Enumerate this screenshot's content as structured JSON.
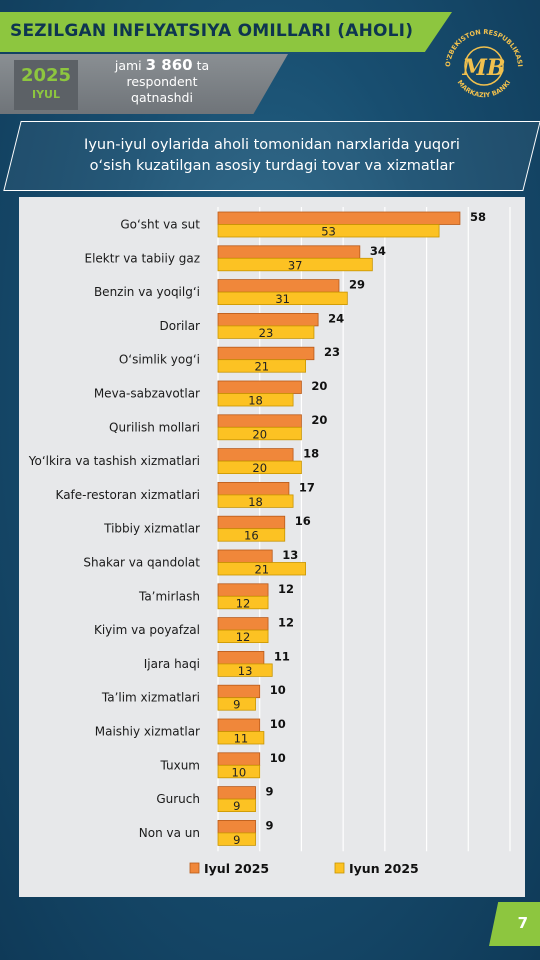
{
  "header": {
    "title": "SEZILGAN INFLYATSIYA OMILLARI (AHOLI)",
    "year": "2025",
    "month": "IYUL",
    "respondents_prefix": "jami",
    "respondents_count": "3 860",
    "respondents_suffix": "ta",
    "respondents_line2": "respondent",
    "respondents_line3": "qatnashdi"
  },
  "logo": {
    "text_top": "O'ZBEKISTON RESPUBLIKASI",
    "text_bottom": "MARKAZIY BANKI",
    "mark": "MB"
  },
  "subtitle": {
    "line1": "Iyun-iyul oylarida aholi tomonidan narxlarida yuqori",
    "line2": "o‘sish kuzatilgan asosiy turdagi tovar va xizmatlar"
  },
  "chart_data": {
    "type": "bar",
    "orientation": "horizontal",
    "categories": [
      "Go‘sht va sut",
      "Elektr va tabiiy gaz",
      "Benzin va yoqilg‘i",
      "Dorilar",
      "O‘simlik yog‘i",
      "Meva-sabzavotlar",
      "Qurilish mollari",
      "Yo‘lkira va tashish xizmatlari",
      "Kafe-restoran xizmatlari",
      "Tibbiy xizmatlar",
      "Shakar va qandolat",
      "Ta’mirlash",
      "Kiyim va poyafzal",
      "Ijara haqi",
      "Ta’lim xizmatlari",
      "Maishiy xizmatlar",
      "Tuxum",
      "Guruch",
      "Non va un"
    ],
    "series": [
      {
        "name": "Iyul 2025",
        "color": "#f0873a",
        "values": [
          58,
          34,
          29,
          24,
          23,
          20,
          20,
          18,
          17,
          16,
          13,
          12,
          12,
          11,
          10,
          10,
          10,
          9,
          9
        ]
      },
      {
        "name": "Iyun 2025",
        "color": "#fcc223",
        "values": [
          53,
          37,
          31,
          23,
          21,
          18,
          20,
          20,
          18,
          16,
          21,
          12,
          12,
          13,
          9,
          11,
          10,
          9,
          9
        ]
      }
    ],
    "xlim": [
      0,
      70
    ],
    "grid": true,
    "legend": "bottom"
  },
  "footer": {
    "page_number": "7"
  }
}
